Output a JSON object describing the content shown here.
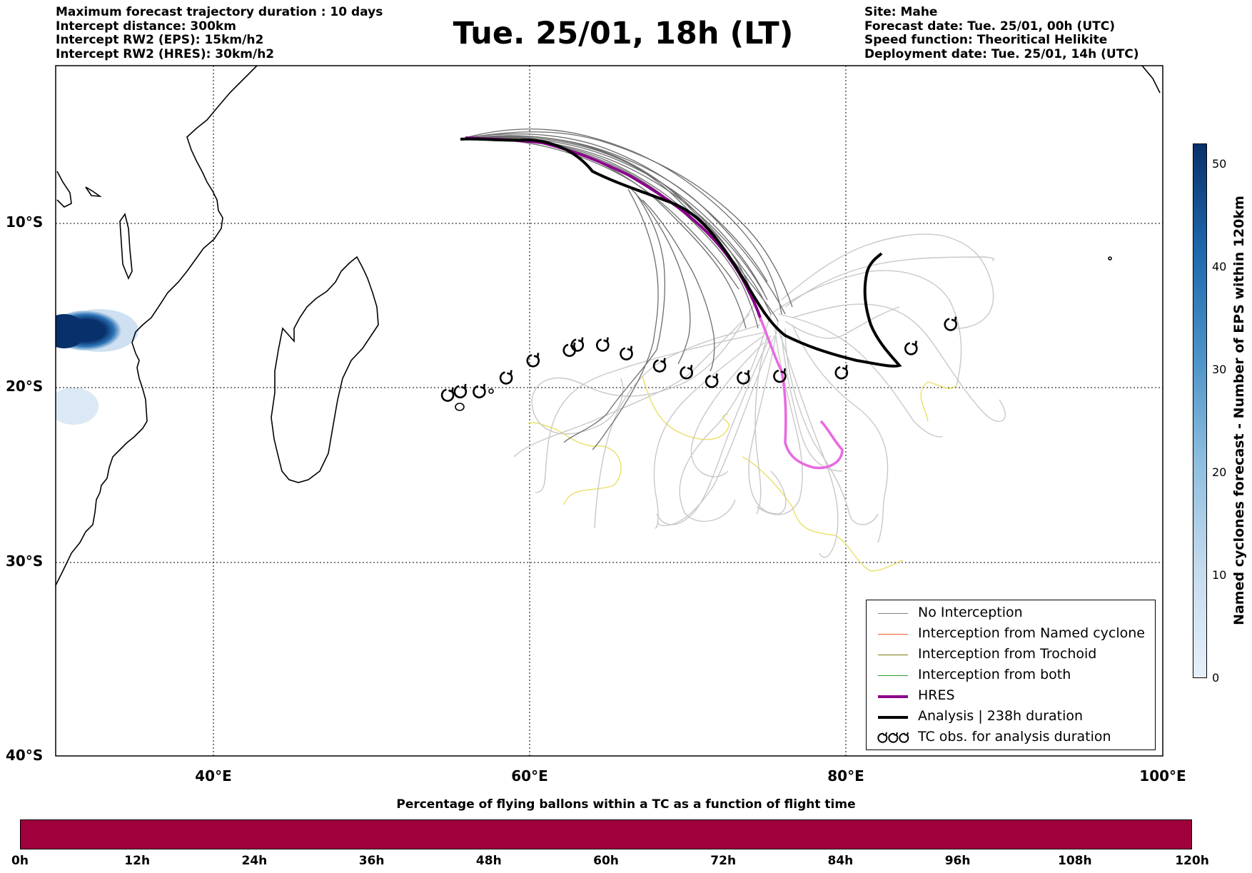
{
  "header_left": [
    "Maximum forecast trajectory duration : 10 days",
    "Intercept distance: 300km",
    "Intercept RW2 (EPS):  15km/h2",
    "Intercept RW2 (HRES): 30km/h2"
  ],
  "title": "Tue. 25/01, 18h (LT)",
  "header_right": [
    "Site: Mahe",
    "Forecast date: Tue. 25/01, 00h (UTC)",
    "Speed function: Theoritical Helikite",
    "Deployment date: Tue. 25/01, 14h (UTC)"
  ],
  "map": {
    "lat_labels": [
      "10°S",
      "20°S",
      "30°S",
      "40°S"
    ],
    "lon_labels": [
      "40°E",
      "60°E",
      "80°E",
      "100°E"
    ],
    "lon_range": [
      30,
      100
    ],
    "lat_range": [
      0,
      -40
    ]
  },
  "legend": [
    {
      "label": "No Interception",
      "color": "#808080"
    },
    {
      "label": "Interception from Named cyclone",
      "color": "#e8602c"
    },
    {
      "label": "Interception from Trochoid",
      "color": "#7a7a10"
    },
    {
      "label": "Interception from both",
      "color": "#2a9a2a"
    },
    {
      "label": "HRES",
      "color": "#8b008b"
    },
    {
      "label": "Analysis | 238h duration",
      "color": "#000000"
    },
    {
      "label": "TC obs. for analysis duration",
      "icon": "cyclone-icon"
    }
  ],
  "colorbar_vertical": {
    "label": "Named cyclones forecast - Number of EPS within 120km",
    "ticks": [
      "0",
      "10",
      "20",
      "30",
      "40",
      "50"
    ],
    "range": [
      0,
      52
    ]
  },
  "colorbar_horizontal": {
    "title": "Percentage of flying ballons within a TC as a function of flight time",
    "ticks": [
      "0h",
      "12h",
      "24h",
      "36h",
      "48h",
      "60h",
      "72h",
      "84h",
      "96h",
      "108h",
      "120h"
    ],
    "color": "#a0003c"
  },
  "chart_data": {
    "type": "map",
    "hres_track": [
      [
        56.0,
        -4.6
      ],
      [
        58.0,
        -4.7
      ],
      [
        60.0,
        -4.7
      ],
      [
        62.0,
        -5.3
      ],
      [
        64.0,
        -6.0
      ],
      [
        66.0,
        -7.0
      ],
      [
        68.0,
        -8.3
      ],
      [
        70.0,
        -9.6
      ],
      [
        71.5,
        -10.9
      ],
      [
        72.6,
        -12.2
      ],
      [
        73.5,
        -13.6
      ],
      [
        74.3,
        -15.0
      ],
      [
        75.1,
        -16.7
      ],
      [
        75.8,
        -18.3
      ],
      [
        76.2,
        -19.5
      ],
      [
        76.3,
        -21.0
      ],
      [
        76.4,
        -22.0
      ],
      [
        76.3,
        -23.0
      ],
      [
        77.0,
        -23.8
      ],
      [
        78.0,
        -24.0
      ],
      [
        79.2,
        -23.6
      ],
      [
        79.4,
        -23.3
      ],
      [
        78.6,
        -22.6
      ],
      [
        78.3,
        -21.8
      ],
      [
        77.9,
        -21.0
      ]
    ],
    "analysis_track": [
      [
        55.8,
        -4.6
      ],
      [
        57.0,
        -4.9
      ],
      [
        59.0,
        -4.9
      ],
      [
        61.0,
        -5.4
      ],
      [
        62.5,
        -6.0
      ],
      [
        64.0,
        -6.9
      ],
      [
        66.0,
        -7.8
      ],
      [
        68.0,
        -8.6
      ],
      [
        70.0,
        -9.3
      ],
      [
        71.3,
        -10.0
      ],
      [
        72.3,
        -11.4
      ],
      [
        73.1,
        -12.6
      ],
      [
        74.0,
        -14.0
      ],
      [
        75.0,
        -15.4
      ],
      [
        76.5,
        -16.8
      ],
      [
        78.0,
        -17.6
      ],
      [
        79.5,
        -18.0
      ],
      [
        81.0,
        -18.4
      ],
      [
        82.0,
        -18.5
      ],
      [
        81.3,
        -17.6
      ],
      [
        80.5,
        -16.5
      ],
      [
        80.0,
        -15.0
      ],
      [
        80.0,
        -13.5
      ],
      [
        80.5,
        -12.5
      ],
      [
        80.9,
        -11.8
      ]
    ],
    "tc_observations": [
      [
        54.8,
        -19.1
      ],
      [
        55.6,
        -18.9
      ],
      [
        56.8,
        -18.9
      ],
      [
        58.5,
        -18.1
      ],
      [
        60.2,
        -17.1
      ],
      [
        62.5,
        -16.5
      ],
      [
        63.0,
        -16.2
      ],
      [
        64.6,
        -16.2
      ],
      [
        66.1,
        -16.7
      ],
      [
        68.2,
        -17.4
      ],
      [
        69.9,
        -17.8
      ],
      [
        71.5,
        -18.3
      ],
      [
        73.5,
        -18.1
      ],
      [
        75.8,
        -18.0
      ],
      [
        79.7,
        -17.8
      ],
      [
        84.1,
        -16.4
      ],
      [
        86.6,
        -15.0
      ]
    ],
    "cyclone_density": [
      {
        "lon": 31.5,
        "lat": -16.0,
        "value": 52
      },
      {
        "lon": 32.0,
        "lat": -21.0,
        "value": 3
      }
    ]
  }
}
